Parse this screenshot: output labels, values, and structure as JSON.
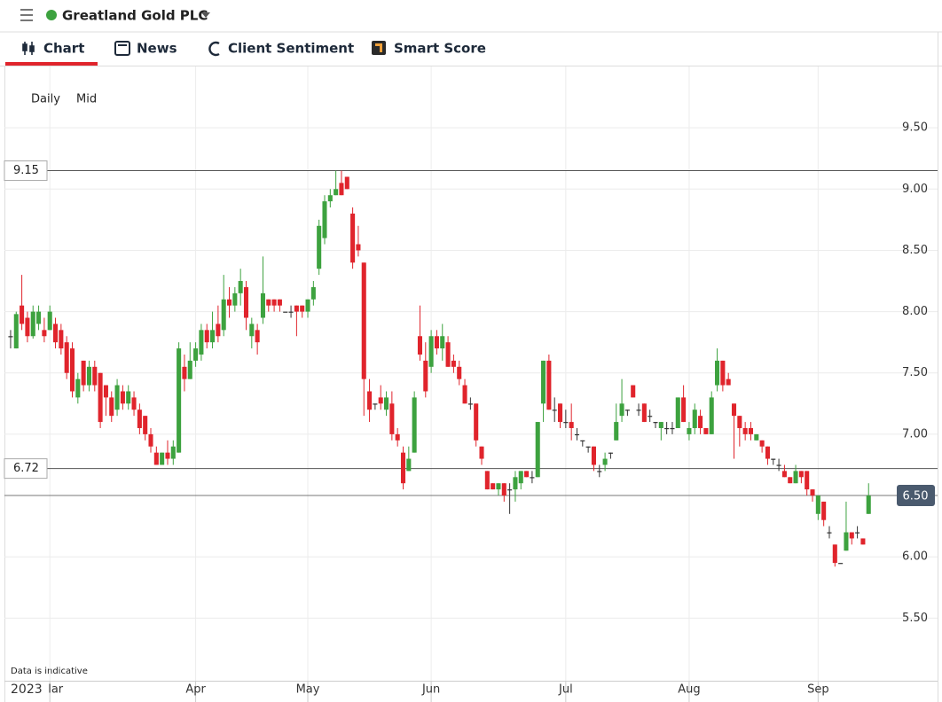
{
  "header": {
    "title": "Greatland Gold PLC"
  },
  "tabs": [
    "Chart",
    "News",
    "Client Sentiment",
    "Smart Score"
  ],
  "chart_data": {
    "type": "candlestick",
    "interval": "Daily",
    "price_type": "Mid",
    "note": "Data is indicative",
    "year_label": "2023",
    "up_color": "#3da23f",
    "down_color": "#e0242c",
    "doji_color": "#333333",
    "grid": true,
    "xlim": [
      -1.1,
      165.3
    ],
    "xticks": [
      {
        "value": 7,
        "label": "lar"
      },
      {
        "value": 33,
        "label": "Apr"
      },
      {
        "value": 53,
        "label": "May"
      },
      {
        "value": 75,
        "label": "Jun"
      },
      {
        "value": 99,
        "label": "Jul"
      },
      {
        "value": 121,
        "label": "Aug"
      },
      {
        "value": 144,
        "label": "Sep"
      }
    ],
    "ylim": [
      4.83,
      10.0
    ],
    "yticks": [
      {
        "value": 5.5,
        "label": "5.50"
      },
      {
        "value": 6,
        "label": "6.00"
      },
      {
        "value": 6.5,
        "label": "6.50"
      },
      {
        "value": 7,
        "label": "7.00"
      },
      {
        "value": 7.5,
        "label": "7.50"
      },
      {
        "value": 8,
        "label": "8.00"
      },
      {
        "value": 8.5,
        "label": "8.50"
      },
      {
        "value": 9,
        "label": "9.00"
      },
      {
        "value": 9.5,
        "label": "9.50"
      }
    ],
    "lines": [
      {
        "value": 9.15,
        "label": "9.15"
      },
      {
        "value": 6.72,
        "label": "6.72"
      }
    ],
    "last_price": {
      "value": 6.5,
      "label": "6.50"
    },
    "ohlc": [
      [
        7.8,
        7.85,
        7.7,
        7.8
      ],
      [
        7.7,
        8.0,
        7.7,
        7.98
      ],
      [
        8.05,
        8.3,
        7.85,
        7.9
      ],
      [
        7.95,
        8.0,
        7.75,
        7.8
      ],
      [
        7.8,
        8.05,
        7.78,
        8.0
      ],
      [
        7.9,
        8.05,
        7.85,
        8.0
      ],
      [
        7.85,
        7.95,
        7.75,
        7.8
      ],
      [
        7.85,
        8.05,
        7.85,
        8.0
      ],
      [
        7.9,
        7.95,
        7.7,
        7.75
      ],
      [
        7.85,
        7.9,
        7.65,
        7.7
      ],
      [
        7.75,
        7.8,
        7.45,
        7.5
      ],
      [
        7.7,
        7.75,
        7.3,
        7.35
      ],
      [
        7.3,
        7.5,
        7.25,
        7.45
      ],
      [
        7.6,
        7.6,
        7.35,
        7.4
      ],
      [
        7.4,
        7.6,
        7.35,
        7.55
      ],
      [
        7.55,
        7.6,
        7.35,
        7.4
      ],
      [
        7.5,
        7.5,
        7.05,
        7.1
      ],
      [
        7.4,
        7.4,
        7.15,
        7.3
      ],
      [
        7.3,
        7.35,
        7.1,
        7.15
      ],
      [
        7.2,
        7.45,
        7.15,
        7.4
      ],
      [
        7.35,
        7.4,
        7.2,
        7.25
      ],
      [
        7.25,
        7.4,
        7.2,
        7.35
      ],
      [
        7.3,
        7.35,
        7.15,
        7.2
      ],
      [
        7.2,
        7.25,
        7.0,
        7.05
      ],
      [
        7.15,
        7.15,
        6.95,
        7.0
      ],
      [
        7.0,
        7.05,
        6.85,
        6.9
      ],
      [
        6.85,
        6.9,
        6.75,
        6.75
      ],
      [
        6.75,
        6.85,
        6.75,
        6.85
      ],
      [
        6.85,
        6.95,
        6.75,
        6.8
      ],
      [
        6.8,
        6.95,
        6.75,
        6.9
      ],
      [
        6.85,
        7.75,
        6.85,
        7.7
      ],
      [
        7.55,
        7.65,
        7.35,
        7.45
      ],
      [
        7.45,
        7.75,
        7.45,
        7.6
      ],
      [
        7.6,
        7.75,
        7.55,
        7.7
      ],
      [
        7.65,
        7.9,
        7.6,
        7.85
      ],
      [
        7.85,
        7.9,
        7.7,
        7.75
      ],
      [
        7.75,
        8.0,
        7.7,
        7.85
      ],
      [
        7.9,
        8.05,
        7.75,
        7.8
      ],
      [
        7.85,
        8.3,
        7.8,
        8.1
      ],
      [
        8.1,
        8.2,
        7.95,
        8.05
      ],
      [
        8.05,
        8.2,
        8.0,
        8.15
      ],
      [
        8.15,
        8.35,
        8.05,
        8.25
      ],
      [
        8.2,
        8.25,
        7.85,
        7.95
      ],
      [
        7.8,
        7.95,
        7.7,
        7.9
      ],
      [
        7.85,
        7.9,
        7.65,
        7.75
      ],
      [
        7.95,
        8.45,
        7.9,
        8.15
      ],
      [
        8.1,
        8.1,
        8.0,
        8.05
      ],
      [
        8.1,
        8.1,
        8.0,
        8.05
      ],
      [
        8.1,
        8.1,
        8.0,
        8.05
      ],
      [
        8.0,
        8.0,
        8.0,
        8.0
      ],
      [
        8.0,
        8.05,
        7.95,
        8.0
      ],
      [
        8.05,
        8.05,
        7.8,
        8.0
      ],
      [
        8.05,
        8.05,
        7.95,
        8.0
      ],
      [
        8.0,
        8.1,
        7.95,
        8.1
      ],
      [
        8.1,
        8.25,
        8.05,
        8.2
      ],
      [
        8.35,
        8.75,
        8.3,
        8.7
      ],
      [
        8.6,
        8.95,
        8.55,
        8.9
      ],
      [
        8.9,
        9.0,
        8.85,
        8.95
      ],
      [
        8.95,
        9.15,
        8.95,
        9.0
      ],
      [
        9.05,
        9.15,
        8.95,
        8.95
      ],
      [
        9.1,
        9.1,
        9.0,
        9.0
      ],
      [
        8.8,
        8.85,
        8.35,
        8.4
      ],
      [
        8.55,
        8.7,
        8.45,
        8.5
      ],
      [
        8.4,
        8.4,
        7.15,
        7.45
      ],
      [
        7.35,
        7.45,
        7.1,
        7.2
      ],
      [
        7.25,
        7.25,
        7.2,
        7.25
      ],
      [
        7.3,
        7.4,
        7.2,
        7.25
      ],
      [
        7.2,
        7.35,
        7.15,
        7.3
      ],
      [
        7.25,
        7.35,
        6.95,
        7.0
      ],
      [
        7.0,
        7.05,
        6.9,
        6.95
      ],
      [
        6.85,
        6.9,
        6.55,
        6.6
      ],
      [
        6.7,
        6.9,
        6.7,
        6.8
      ],
      [
        6.85,
        7.35,
        6.85,
        7.3
      ],
      [
        7.8,
        8.05,
        7.6,
        7.65
      ],
      [
        7.6,
        7.75,
        7.3,
        7.35
      ],
      [
        7.55,
        7.85,
        7.5,
        7.8
      ],
      [
        7.8,
        7.85,
        7.65,
        7.7
      ],
      [
        7.7,
        7.9,
        7.6,
        7.8
      ],
      [
        7.75,
        7.8,
        7.55,
        7.55
      ],
      [
        7.6,
        7.65,
        7.5,
        7.55
      ],
      [
        7.55,
        7.6,
        7.4,
        7.45
      ],
      [
        7.4,
        7.45,
        7.25,
        7.25
      ],
      [
        7.25,
        7.3,
        7.2,
        7.25
      ],
      [
        7.25,
        7.25,
        6.9,
        6.95
      ],
      [
        6.9,
        6.9,
        6.75,
        6.8
      ],
      [
        6.7,
        6.7,
        6.55,
        6.55
      ],
      [
        6.6,
        6.6,
        6.55,
        6.55
      ],
      [
        6.55,
        6.6,
        6.5,
        6.6
      ],
      [
        6.6,
        6.6,
        6.45,
        6.5
      ],
      [
        6.55,
        6.6,
        6.35,
        6.55
      ],
      [
        6.55,
        6.7,
        6.45,
        6.65
      ],
      [
        6.6,
        6.7,
        6.55,
        6.7
      ],
      [
        6.7,
        6.7,
        6.65,
        6.65
      ],
      [
        6.65,
        6.7,
        6.6,
        6.65
      ],
      [
        6.65,
        7.1,
        6.65,
        7.1
      ],
      [
        7.25,
        7.6,
        7.1,
        7.6
      ],
      [
        7.6,
        7.65,
        7.2,
        7.2
      ],
      [
        7.2,
        7.3,
        7.1,
        7.2
      ],
      [
        7.25,
        7.25,
        7.05,
        7.1
      ],
      [
        7.1,
        7.2,
        7.05,
        7.1
      ],
      [
        7.1,
        7.25,
        6.95,
        7.05
      ],
      [
        7.0,
        7.05,
        6.95,
        7.0
      ],
      [
        6.95,
        6.95,
        6.9,
        6.95
      ],
      [
        6.9,
        6.9,
        6.85,
        6.9
      ],
      [
        6.9,
        6.9,
        6.7,
        6.75
      ],
      [
        6.7,
        6.75,
        6.65,
        6.7
      ],
      [
        6.75,
        6.85,
        6.7,
        6.8
      ],
      [
        6.85,
        6.85,
        6.8,
        6.85
      ],
      [
        6.95,
        7.25,
        6.95,
        7.1
      ],
      [
        7.15,
        7.45,
        7.1,
        7.25
      ],
      [
        7.2,
        7.2,
        7.15,
        7.2
      ],
      [
        7.4,
        7.4,
        7.3,
        7.3
      ],
      [
        7.2,
        7.25,
        7.15,
        7.2
      ],
      [
        7.25,
        7.25,
        7.1,
        7.1
      ],
      [
        7.15,
        7.2,
        7.1,
        7.15
      ],
      [
        7.1,
        7.1,
        7.05,
        7.1
      ],
      [
        7.05,
        7.1,
        6.95,
        7.1
      ],
      [
        7.05,
        7.1,
        7.0,
        7.05
      ],
      [
        7.05,
        7.1,
        7.0,
        7.05
      ],
      [
        7.05,
        7.3,
        7.05,
        7.3
      ],
      [
        7.3,
        7.4,
        7.1,
        7.1
      ],
      [
        7.0,
        7.1,
        6.95,
        7.05
      ],
      [
        7.05,
        7.25,
        7.0,
        7.2
      ],
      [
        7.15,
        7.2,
        7.0,
        7.05
      ],
      [
        7.05,
        7.05,
        7.0,
        7.0
      ],
      [
        7.0,
        7.35,
        7.0,
        7.3
      ],
      [
        7.4,
        7.7,
        7.35,
        7.6
      ],
      [
        7.6,
        7.6,
        7.35,
        7.4
      ],
      [
        7.45,
        7.5,
        7.4,
        7.4
      ],
      [
        7.25,
        7.25,
        6.8,
        7.15
      ],
      [
        7.15,
        7.15,
        6.9,
        7.05
      ],
      [
        7.05,
        7.1,
        6.95,
        7.0
      ],
      [
        7.05,
        7.1,
        6.95,
        7.0
      ],
      [
        6.95,
        7.0,
        6.95,
        7.0
      ],
      [
        6.95,
        6.95,
        6.85,
        6.9
      ],
      [
        6.9,
        6.9,
        6.75,
        6.8
      ],
      [
        6.8,
        6.8,
        6.75,
        6.8
      ],
      [
        6.75,
        6.8,
        6.7,
        6.75
      ],
      [
        6.7,
        6.75,
        6.65,
        6.65
      ],
      [
        6.65,
        6.65,
        6.6,
        6.6
      ],
      [
        6.6,
        6.75,
        6.6,
        6.7
      ],
      [
        6.7,
        6.7,
        6.6,
        6.65
      ],
      [
        6.7,
        6.7,
        6.5,
        6.55
      ],
      [
        6.55,
        6.55,
        6.45,
        6.5
      ],
      [
        6.35,
        6.5,
        6.3,
        6.5
      ],
      [
        6.45,
        6.45,
        6.25,
        6.3
      ],
      [
        6.2,
        6.25,
        6.15,
        6.2
      ],
      [
        6.1,
        6.1,
        5.92,
        5.95
      ],
      [
        5.95,
        5.95,
        5.95,
        5.95
      ],
      [
        6.05,
        6.45,
        6.05,
        6.2
      ],
      [
        6.2,
        6.2,
        6.1,
        6.15
      ],
      [
        6.2,
        6.25,
        6.15,
        6.2
      ],
      [
        6.15,
        6.15,
        6.1,
        6.1
      ],
      [
        6.35,
        6.6,
        6.35,
        6.5
      ]
    ]
  }
}
